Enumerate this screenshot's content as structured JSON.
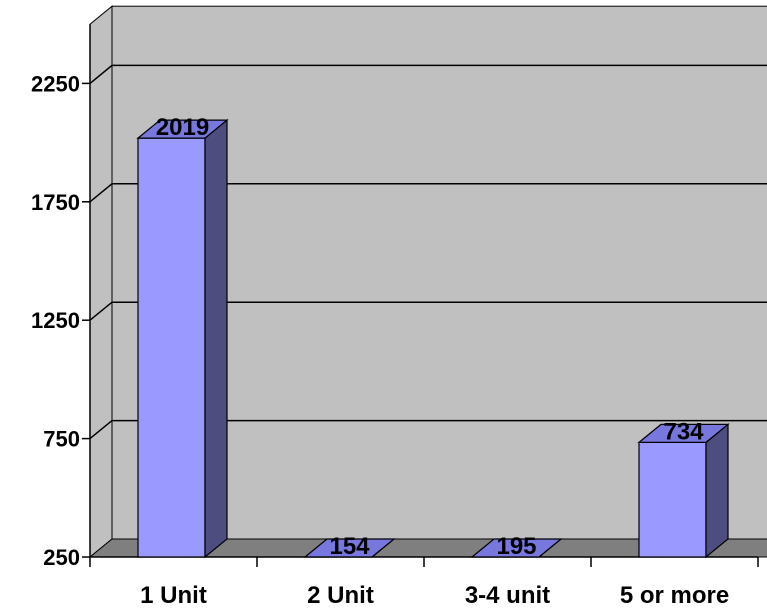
{
  "chart_data": {
    "type": "bar",
    "categories": [
      "1 Unit",
      "2 Unit",
      "3-4 unit",
      "5 or more"
    ],
    "values": [
      2019,
      154,
      195,
      734
    ],
    "data_labels": [
      "2019",
      "154",
      "195",
      "734"
    ],
    "yticks": [
      "250",
      "750",
      "1250",
      "1750",
      "2250"
    ],
    "ylim": [
      250,
      2500
    ],
    "title": "",
    "xlabel": "",
    "ylabel": "",
    "grid": true,
    "legend": "none",
    "style": "3d-column",
    "colors": {
      "wall": "#c0c0c0",
      "floor": "#7f7f7f",
      "bar_front": "#9999ff",
      "bar_side": "#4d4d80",
      "bar_top": "#7777dd"
    }
  }
}
